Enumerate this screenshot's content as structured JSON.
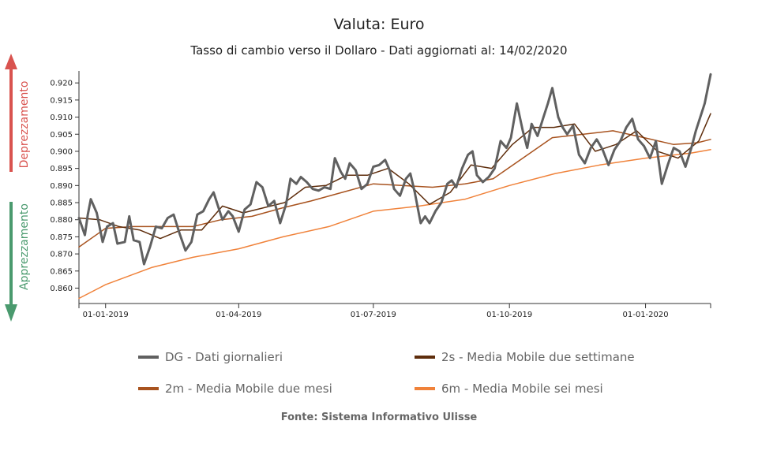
{
  "chart_data": {
    "type": "line",
    "title": "Valuta: Euro",
    "subtitle": "Tasso di cambio verso il Dollaro - Dati aggiornati al: 14/02/2020",
    "source": "Fonte: Sistema Informativo Ulisse",
    "ylim": [
      0.8555,
      0.9235
    ],
    "xlim": [
      "2018-12-14",
      "2020-02-14"
    ],
    "y_ticks": [
      0.86,
      0.865,
      0.87,
      0.875,
      0.88,
      0.885,
      0.89,
      0.895,
      0.9,
      0.905,
      0.91,
      0.915,
      0.92
    ],
    "y_tick_labels": [
      "0.860",
      "0.865",
      "0.870",
      "0.875",
      "0.880",
      "0.885",
      "0.890",
      "0.895",
      "0.900",
      "0.905",
      "0.910",
      "0.915",
      "0.920"
    ],
    "x_ticks": [
      "2019-01-01",
      "2019-04-01",
      "2019-07-01",
      "2019-10-01",
      "2020-01-01"
    ],
    "x_tick_labels": [
      "01-01-2019",
      "01-04-2019",
      "01-07-2019",
      "01-10-2019",
      "01-01-2020"
    ],
    "grid": false,
    "legend_position": "bottom",
    "annotations": {
      "up": "Deprezzamento",
      "down": "Apprezzamento",
      "up_color": "#d9534f",
      "down_color": "#4a9a6e"
    },
    "series": [
      {
        "name": "DG - Dati giornalieri",
        "color": "#606060",
        "points": [
          [
            "2018-12-14",
            0.8805
          ],
          [
            "2018-12-18",
            0.8755
          ],
          [
            "2018-12-20",
            0.8815
          ],
          [
            "2018-12-22",
            0.886
          ],
          [
            "2018-12-26",
            0.882
          ],
          [
            "2018-12-30",
            0.8735
          ],
          [
            "2019-01-02",
            0.878
          ],
          [
            "2019-01-06",
            0.879
          ],
          [
            "2019-01-09",
            0.873
          ],
          [
            "2019-01-14",
            0.8735
          ],
          [
            "2019-01-17",
            0.881
          ],
          [
            "2019-01-20",
            0.874
          ],
          [
            "2019-01-24",
            0.8735
          ],
          [
            "2019-01-27",
            0.867
          ],
          [
            "2019-01-31",
            0.872
          ],
          [
            "2019-02-04",
            0.878
          ],
          [
            "2019-02-08",
            0.8775
          ],
          [
            "2019-02-12",
            0.8805
          ],
          [
            "2019-02-16",
            0.8815
          ],
          [
            "2019-02-20",
            0.876
          ],
          [
            "2019-02-24",
            0.871
          ],
          [
            "2019-02-28",
            0.8735
          ],
          [
            "2019-03-04",
            0.8815
          ],
          [
            "2019-03-08",
            0.8825
          ],
          [
            "2019-03-12",
            0.886
          ],
          [
            "2019-03-15",
            0.888
          ],
          [
            "2019-03-18",
            0.884
          ],
          [
            "2019-03-21",
            0.88
          ],
          [
            "2019-03-25",
            0.8825
          ],
          [
            "2019-03-28",
            0.881
          ],
          [
            "2019-04-01",
            0.8765
          ],
          [
            "2019-04-05",
            0.883
          ],
          [
            "2019-04-09",
            0.8845
          ],
          [
            "2019-04-13",
            0.891
          ],
          [
            "2019-04-17",
            0.8895
          ],
          [
            "2019-04-21",
            0.884
          ],
          [
            "2019-04-25",
            0.8855
          ],
          [
            "2019-04-29",
            0.879
          ],
          [
            "2019-05-03",
            0.8845
          ],
          [
            "2019-05-06",
            0.892
          ],
          [
            "2019-05-10",
            0.8905
          ],
          [
            "2019-05-13",
            0.8925
          ],
          [
            "2019-05-17",
            0.891
          ],
          [
            "2019-05-21",
            0.889
          ],
          [
            "2019-05-25",
            0.8885
          ],
          [
            "2019-05-29",
            0.8895
          ],
          [
            "2019-06-02",
            0.889
          ],
          [
            "2019-06-05",
            0.898
          ],
          [
            "2019-06-09",
            0.894
          ],
          [
            "2019-06-12",
            0.892
          ],
          [
            "2019-06-15",
            0.8965
          ],
          [
            "2019-06-19",
            0.8945
          ],
          [
            "2019-06-23",
            0.889
          ],
          [
            "2019-06-27",
            0.8905
          ],
          [
            "2019-07-01",
            0.8955
          ],
          [
            "2019-07-05",
            0.896
          ],
          [
            "2019-07-09",
            0.8975
          ],
          [
            "2019-07-12",
            0.8945
          ],
          [
            "2019-07-15",
            0.889
          ],
          [
            "2019-07-19",
            0.887
          ],
          [
            "2019-07-23",
            0.892
          ],
          [
            "2019-07-26",
            0.8935
          ],
          [
            "2019-07-29",
            0.888
          ],
          [
            "2019-08-02",
            0.879
          ],
          [
            "2019-08-05",
            0.881
          ],
          [
            "2019-08-08",
            0.879
          ],
          [
            "2019-08-12",
            0.8825
          ],
          [
            "2019-08-16",
            0.885
          ],
          [
            "2019-08-20",
            0.8905
          ],
          [
            "2019-08-23",
            0.8915
          ],
          [
            "2019-08-26",
            0.8895
          ],
          [
            "2019-08-30",
            0.895
          ],
          [
            "2019-09-03",
            0.899
          ],
          [
            "2019-09-06",
            0.9
          ],
          [
            "2019-09-09",
            0.893
          ],
          [
            "2019-09-13",
            0.891
          ],
          [
            "2019-09-17",
            0.8925
          ],
          [
            "2019-09-21",
            0.895
          ],
          [
            "2019-09-25",
            0.903
          ],
          [
            "2019-09-29",
            0.901
          ],
          [
            "2019-10-02",
            0.904
          ],
          [
            "2019-10-06",
            0.914
          ],
          [
            "2019-10-10",
            0.906
          ],
          [
            "2019-10-13",
            0.901
          ],
          [
            "2019-10-16",
            0.908
          ],
          [
            "2019-10-20",
            0.9045
          ],
          [
            "2019-10-24",
            0.91
          ],
          [
            "2019-10-27",
            0.914
          ],
          [
            "2019-10-30",
            0.9185
          ],
          [
            "2019-11-03",
            0.91
          ],
          [
            "2019-11-06",
            0.907
          ],
          [
            "2019-11-09",
            0.905
          ],
          [
            "2019-11-13",
            0.9075
          ],
          [
            "2019-11-17",
            0.899
          ],
          [
            "2019-11-21",
            0.8965
          ],
          [
            "2019-11-25",
            0.901
          ],
          [
            "2019-11-29",
            0.9035
          ],
          [
            "2019-12-03",
            0.9005
          ],
          [
            "2019-12-07",
            0.896
          ],
          [
            "2019-12-11",
            0.9005
          ],
          [
            "2019-12-15",
            0.903
          ],
          [
            "2019-12-19",
            0.907
          ],
          [
            "2019-12-23",
            0.9095
          ],
          [
            "2019-12-27",
            0.9035
          ],
          [
            "2019-12-31",
            0.9015
          ],
          [
            "2020-01-04",
            0.898
          ],
          [
            "2020-01-08",
            0.903
          ],
          [
            "2020-01-12",
            0.8905
          ],
          [
            "2020-01-16",
            0.896
          ],
          [
            "2020-01-20",
            0.901
          ],
          [
            "2020-01-24",
            0.9
          ],
          [
            "2020-01-28",
            0.8955
          ],
          [
            "2020-02-01",
            0.901
          ],
          [
            "2020-02-04",
            0.906
          ],
          [
            "2020-02-07",
            0.91
          ],
          [
            "2020-02-10",
            0.914
          ],
          [
            "2020-02-14",
            0.9225
          ]
        ]
      },
      {
        "name": "2s - Media Mobile due settimane",
        "color": "#5e2d0c",
        "points": [
          [
            "2018-12-14",
            0.8805
          ],
          [
            "2018-12-28",
            0.88
          ],
          [
            "2019-01-10",
            0.878
          ],
          [
            "2019-01-24",
            0.877
          ],
          [
            "2019-02-07",
            0.8745
          ],
          [
            "2019-02-21",
            0.877
          ],
          [
            "2019-03-07",
            0.877
          ],
          [
            "2019-03-21",
            0.884
          ],
          [
            "2019-04-04",
            0.882
          ],
          [
            "2019-04-18",
            0.8835
          ],
          [
            "2019-05-02",
            0.885
          ],
          [
            "2019-05-16",
            0.8895
          ],
          [
            "2019-05-30",
            0.89
          ],
          [
            "2019-06-13",
            0.893
          ],
          [
            "2019-06-27",
            0.893
          ],
          [
            "2019-07-11",
            0.895
          ],
          [
            "2019-07-25",
            0.8905
          ],
          [
            "2019-08-08",
            0.8845
          ],
          [
            "2019-08-22",
            0.888
          ],
          [
            "2019-09-05",
            0.896
          ],
          [
            "2019-09-19",
            0.895
          ],
          [
            "2019-10-03",
            0.902
          ],
          [
            "2019-10-17",
            0.907
          ],
          [
            "2019-10-31",
            0.907
          ],
          [
            "2019-11-14",
            0.908
          ],
          [
            "2019-11-28",
            0.9
          ],
          [
            "2019-12-12",
            0.902
          ],
          [
            "2019-12-26",
            0.906
          ],
          [
            "2020-01-09",
            0.9
          ],
          [
            "2020-01-23",
            0.898
          ],
          [
            "2020-02-06",
            0.903
          ],
          [
            "2020-02-14",
            0.911
          ]
        ]
      },
      {
        "name": "2m - Media Mobile due mesi",
        "color": "#a8531f",
        "points": [
          [
            "2018-12-14",
            0.872
          ],
          [
            "2019-01-01",
            0.8775
          ],
          [
            "2019-01-20",
            0.878
          ],
          [
            "2019-02-10",
            0.878
          ],
          [
            "2019-03-01",
            0.878
          ],
          [
            "2019-03-20",
            0.88
          ],
          [
            "2019-04-10",
            0.881
          ],
          [
            "2019-05-01",
            0.8835
          ],
          [
            "2019-05-20",
            0.8855
          ],
          [
            "2019-06-10",
            0.888
          ],
          [
            "2019-07-01",
            0.8905
          ],
          [
            "2019-07-20",
            0.89
          ],
          [
            "2019-08-10",
            0.8895
          ],
          [
            "2019-09-01",
            0.8905
          ],
          [
            "2019-09-20",
            0.892
          ],
          [
            "2019-10-10",
            0.898
          ],
          [
            "2019-10-30",
            0.904
          ],
          [
            "2019-11-20",
            0.905
          ],
          [
            "2019-12-10",
            0.906
          ],
          [
            "2019-12-31",
            0.904
          ],
          [
            "2020-01-20",
            0.902
          ],
          [
            "2020-02-05",
            0.9025
          ],
          [
            "2020-02-14",
            0.9035
          ]
        ]
      },
      {
        "name": "6m - Media Mobile sei mesi",
        "color": "#f0823a",
        "points": [
          [
            "2018-12-14",
            0.857
          ],
          [
            "2019-01-01",
            0.861
          ],
          [
            "2019-02-01",
            0.866
          ],
          [
            "2019-03-01",
            0.869
          ],
          [
            "2019-04-01",
            0.8715
          ],
          [
            "2019-05-01",
            0.875
          ],
          [
            "2019-06-01",
            0.878
          ],
          [
            "2019-07-01",
            0.8825
          ],
          [
            "2019-08-01",
            0.884
          ],
          [
            "2019-09-01",
            0.886
          ],
          [
            "2019-10-01",
            0.89
          ],
          [
            "2019-11-01",
            0.8935
          ],
          [
            "2019-12-01",
            0.896
          ],
          [
            "2020-01-01",
            0.898
          ],
          [
            "2020-02-01",
            0.8995
          ],
          [
            "2020-02-14",
            0.9005
          ]
        ]
      }
    ]
  }
}
